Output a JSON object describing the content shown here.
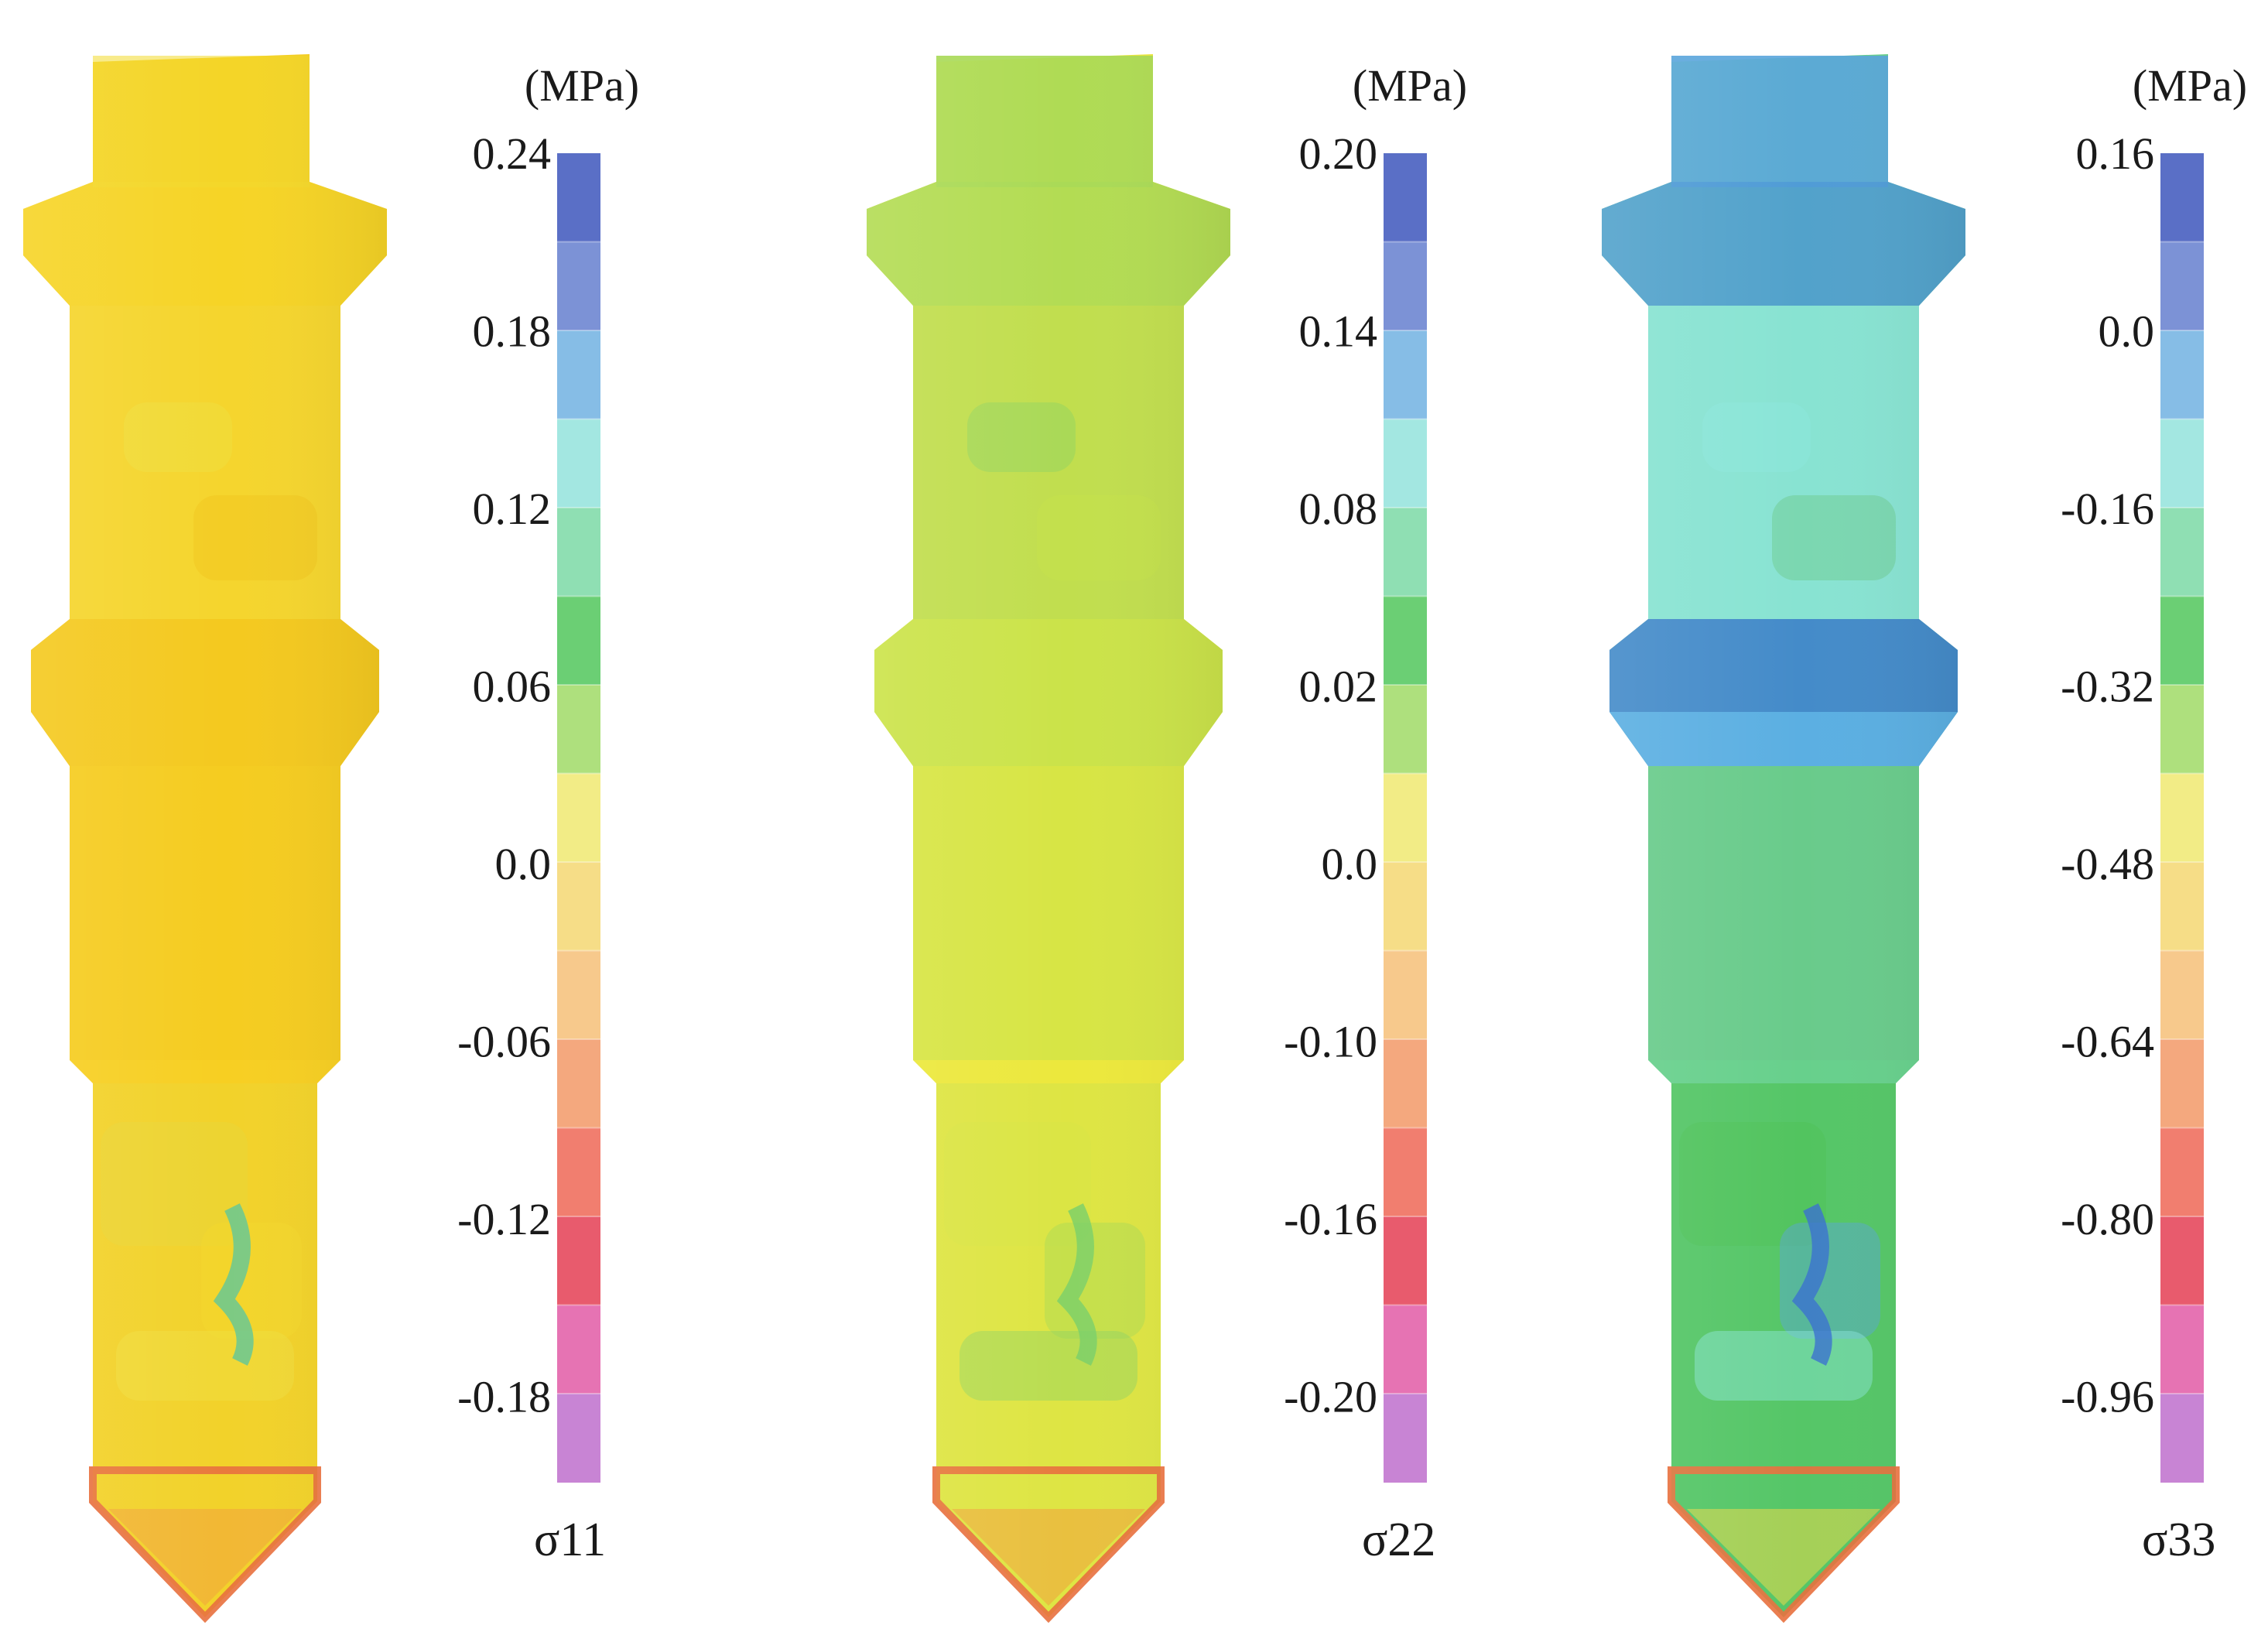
{
  "panels": [
    {
      "id": "sigma11",
      "symbol": "σ11",
      "unit": "(MPa)",
      "tick_labels": [
        "0.24",
        "0.18",
        "0.12",
        "0.06",
        "0.0",
        "-0.06",
        "-0.12",
        "-0.18"
      ],
      "body_base_color": "#f7cf22",
      "band_colors": [
        "#f3da2c",
        "#f0e043",
        "#f1c41c",
        "#e7d83a"
      ],
      "accent_colors": [
        "#5fc79a",
        "#3db7b4",
        "#e8703e"
      ]
    },
    {
      "id": "sigma22",
      "symbol": "σ22",
      "unit": "(MPa)",
      "tick_labels": [
        "0.20",
        "0.14",
        "0.08",
        "0.02",
        "0.0",
        "-0.10",
        "-0.16",
        "-0.20"
      ],
      "body_base_color": "#ece83c",
      "band_colors": [
        "#a9d957",
        "#8fd363",
        "#c6e24b",
        "#d8e446"
      ],
      "accent_colors": [
        "#79cf6a",
        "#e8703e"
      ]
    },
    {
      "id": "sigma33",
      "symbol": "σ33",
      "unit": "(MPa)",
      "tick_labels": [
        "0.16",
        "0.0",
        "-0.16",
        "-0.32",
        "-0.48",
        "-0.64",
        "-0.80",
        "-0.96"
      ],
      "body_base_color": "#67d08c",
      "band_colors": [
        "#5aa5dc",
        "#8ee6de",
        "#6cc78a",
        "#4fc257"
      ],
      "accent_colors": [
        "#3b72cf",
        "#e8d84a",
        "#e8703e"
      ]
    }
  ],
  "colorbar_segments": [
    "#5a6fc6",
    "#7c92d6",
    "#86bde6",
    "#a3e7e1",
    "#8fdfb3",
    "#6bcf74",
    "#aee07d",
    "#f2ec86",
    "#f6dd87",
    "#f7c98c",
    "#f4a87e",
    "#f17e6f",
    "#e85b6d",
    "#e673b3",
    "#c884d4"
  ]
}
